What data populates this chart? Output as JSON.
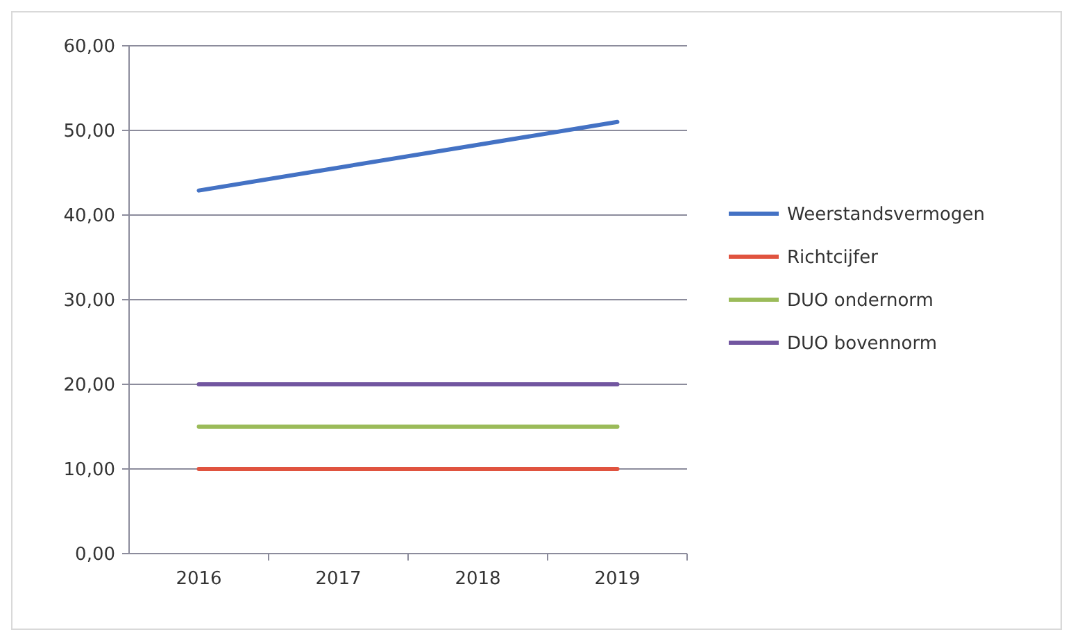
{
  "chart_data": {
    "type": "line",
    "categories": [
      "2016",
      "2017",
      "2018",
      "2019"
    ],
    "series": [
      {
        "name": "Weerstandsvermogen",
        "color": "#4472c4",
        "values": [
          42.9,
          45.6,
          48.3,
          51.0
        ]
      },
      {
        "name": "Richtcijfer",
        "color": "#e0533f",
        "values": [
          10,
          10,
          10,
          10
        ]
      },
      {
        "name": "DUO ondernorm",
        "color": "#9bbb59",
        "values": [
          15,
          15,
          15,
          15
        ]
      },
      {
        "name": "DUO bovennorm",
        "color": "#7256a0",
        "values": [
          20,
          20,
          20,
          20
        ]
      }
    ],
    "ylim": [
      0,
      60
    ],
    "yticks": [
      {
        "value": 0,
        "label": "0,00"
      },
      {
        "value": 10,
        "label": "10,00"
      },
      {
        "value": 20,
        "label": "20,00"
      },
      {
        "value": 30,
        "label": "30,00"
      },
      {
        "value": 40,
        "label": "40,00"
      },
      {
        "value": 50,
        "label": "50,00"
      },
      {
        "value": 60,
        "label": "60,00"
      }
    ],
    "grid": "y",
    "legend": "right",
    "marker": "none",
    "line_style": "solid"
  }
}
